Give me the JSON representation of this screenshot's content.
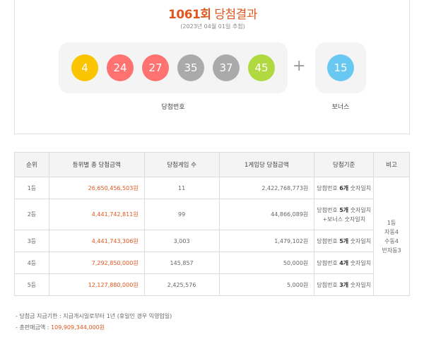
{
  "header": {
    "round_number": "1061회",
    "title_suffix": "당첨결과",
    "draw_date": "(2023년 04월 01일 추첨)"
  },
  "winning": {
    "label": "당첨번호",
    "numbers": [
      {
        "value": "4",
        "color": "#fbc400"
      },
      {
        "value": "24",
        "color": "#ff7272"
      },
      {
        "value": "27",
        "color": "#ff7272"
      },
      {
        "value": "35",
        "color": "#aaaaaa"
      },
      {
        "value": "37",
        "color": "#aaaaaa"
      },
      {
        "value": "45",
        "color": "#b0d840"
      }
    ],
    "plus": "+",
    "bonus_label": "보너스",
    "bonus": {
      "value": "15",
      "color": "#69c8f2"
    }
  },
  "table": {
    "headers": [
      "순위",
      "등위별 총 당첨금액",
      "당첨게임 수",
      "1게임당 당첨금액",
      "당첨기준",
      "비고"
    ],
    "rows": [
      {
        "rank": "1등",
        "total": "26,650,456,503원",
        "games": "11",
        "per_game": "2,422,768,773원",
        "crit_a": "당첨번호 ",
        "crit_b": "6개",
        "crit_c": " 숫자일치",
        "crit_line2": ""
      },
      {
        "rank": "2등",
        "total": "4,441,742,811원",
        "games": "99",
        "per_game": "44,866,089원",
        "crit_a": "당첨번호 ",
        "crit_b": "5개",
        "crit_c": " 숫자일치",
        "crit_line2": "+보너스 숫자일치"
      },
      {
        "rank": "3등",
        "total": "4,441,743,306원",
        "games": "3,003",
        "per_game": "1,479,102원",
        "crit_a": "당첨번호 ",
        "crit_b": "5개",
        "crit_c": " 숫자일치",
        "crit_line2": ""
      },
      {
        "rank": "4등",
        "total": "7,292,850,000원",
        "games": "145,857",
        "per_game": "50,000원",
        "crit_a": "당첨번호 ",
        "crit_b": "4개",
        "crit_c": " 숫자일치",
        "crit_line2": ""
      },
      {
        "rank": "5등",
        "total": "12,127,880,000원",
        "games": "2,425,576",
        "per_game": "5,000원",
        "crit_a": "당첨번호 ",
        "crit_b": "3개",
        "crit_c": " 숫자일치",
        "crit_line2": ""
      }
    ],
    "note_lines": [
      "1등",
      "자동4",
      "수동4",
      "반자동3"
    ]
  },
  "notes": {
    "payout_label": "당첨금 지급기한 : 지급개시일로부터 1년 (휴일인 경우 익영업일)",
    "sales_label": "총판매금액 : ",
    "sales_value": "109,909,344,000원"
  }
}
